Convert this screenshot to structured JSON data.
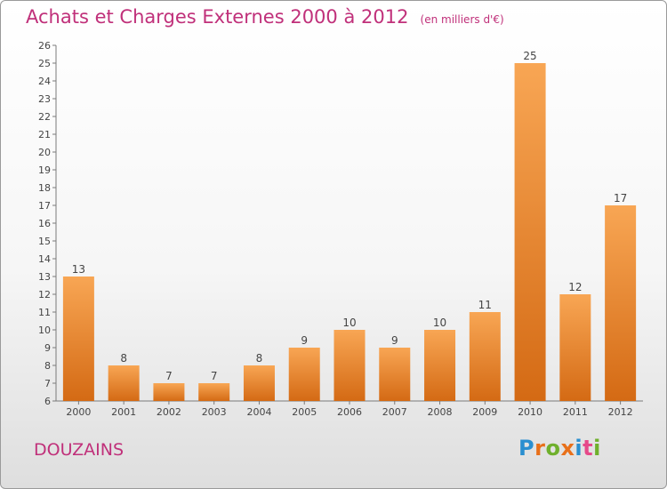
{
  "header": {
    "title": "Achats et Charges Externes 2000 à 2012",
    "unit": "(en milliers d'€)"
  },
  "footer": {
    "town": "DOUZAINS",
    "logo_letters": [
      "P",
      "r",
      "o",
      "x",
      "i",
      "t",
      "i"
    ],
    "logo_colors": [
      "#2a8fd0",
      "#e8701a",
      "#6fb02c",
      "#e8701a",
      "#2a8fd0",
      "#e64a8a",
      "#6fb02c"
    ]
  },
  "colors": {
    "title": "#c0307a",
    "bar_top": "#f8a654",
    "bar_bottom": "#d46a14",
    "axis": "#7a7a7a"
  },
  "chart_data": {
    "type": "bar",
    "title": "Achats et Charges Externes 2000 à 2012",
    "subtitle": "(en milliers d'€)",
    "categories": [
      "2000",
      "2001",
      "2002",
      "2003",
      "2004",
      "2005",
      "2006",
      "2007",
      "2008",
      "2009",
      "2010",
      "2011",
      "2012"
    ],
    "values": [
      13,
      8,
      7,
      7,
      8,
      9,
      10,
      9,
      10,
      11,
      25,
      12,
      17
    ],
    "ylim": [
      6,
      26
    ],
    "yticks": [
      "6",
      "7",
      "8",
      "9",
      "10",
      "11",
      "12",
      "13",
      "14",
      "15",
      "16",
      "17",
      "18",
      "19",
      "20",
      "21",
      "22",
      "23",
      "24",
      "25",
      "26"
    ],
    "grid": false,
    "data_labels": true
  }
}
